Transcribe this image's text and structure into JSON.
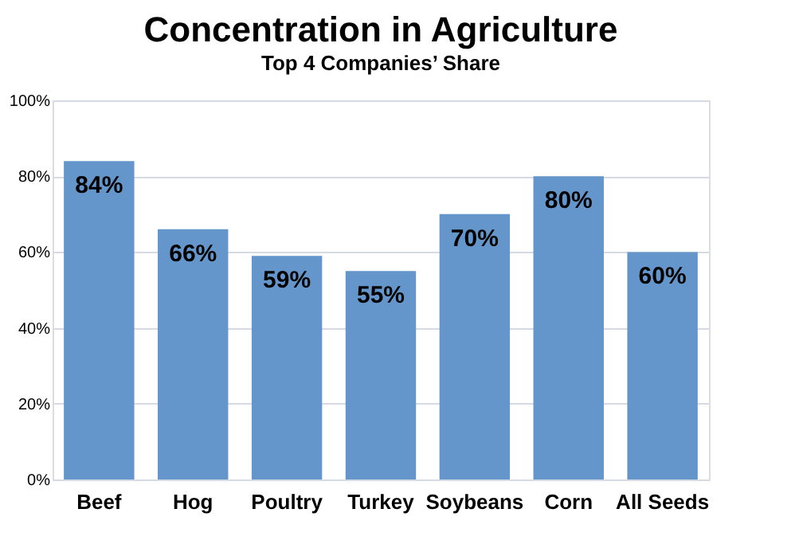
{
  "chart_data": {
    "type": "bar",
    "title": "Concentration in Agriculture",
    "subtitle": "Top 4 Companies’ Share",
    "categories": [
      "Beef",
      "Hog",
      "Poultry",
      "Turkey",
      "Soybeans",
      "Corn",
      "All Seeds"
    ],
    "values": [
      84,
      66,
      59,
      55,
      70,
      80,
      60
    ],
    "value_labels": [
      "84%",
      "66%",
      "59%",
      "55%",
      "70%",
      "80%",
      "60%"
    ],
    "color": "#6496cc",
    "ylim": [
      0,
      100
    ],
    "yticks": [
      {
        "value": 0,
        "label": "0%"
      },
      {
        "value": 20,
        "label": "20%"
      },
      {
        "value": 40,
        "label": "40%"
      },
      {
        "value": 60,
        "label": "60%"
      },
      {
        "value": 80,
        "label": "80%"
      },
      {
        "value": 100,
        "label": "100%"
      }
    ],
    "grid": "y"
  }
}
